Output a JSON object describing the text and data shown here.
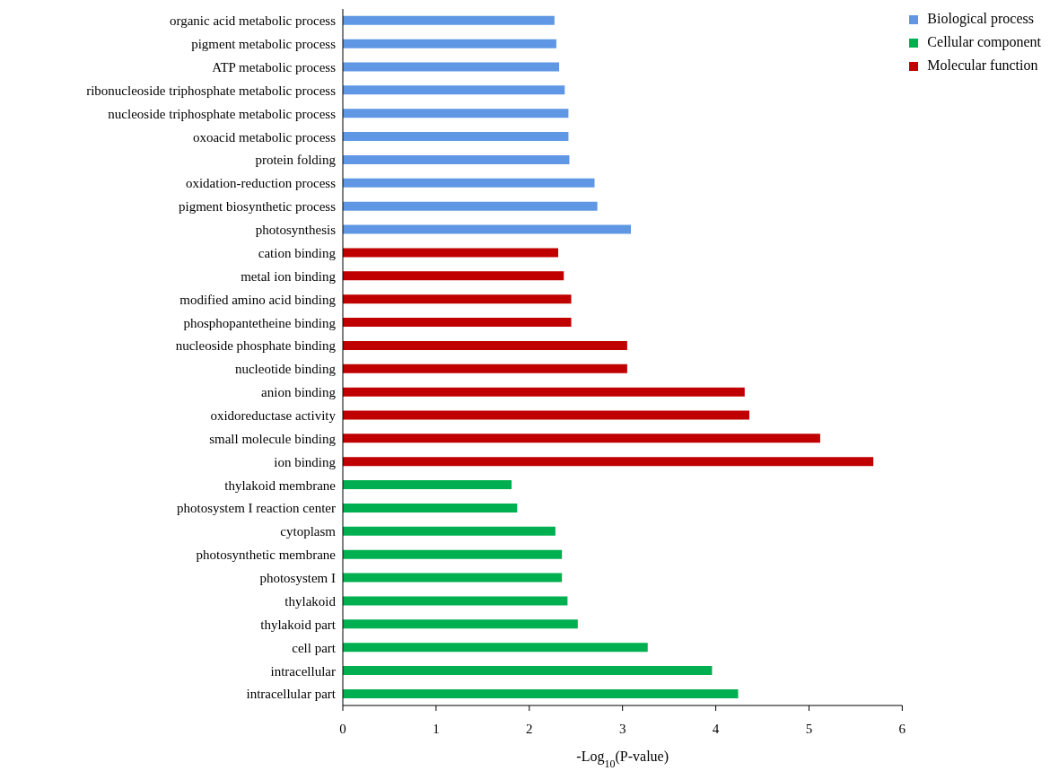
{
  "chart_data": {
    "type": "bar",
    "orientation": "horizontal",
    "stacked": true,
    "xlabel": "-Log$_{10}$(P-value)",
    "categories": [
      "organic acid metabolic process",
      "pigment metabolic process",
      "ATP metabolic process",
      "ribonucleoside triphosphate metabolic process",
      "nucleoside triphosphate metabolic process",
      "oxoacid metabolic process",
      "protein folding",
      "oxidation-reduction process",
      "pigment biosynthetic process",
      "photosynthesis",
      "cation binding",
      "metal ion binding",
      "modified amino acid binding",
      "phosphopantetheine binding",
      "nucleoside phosphate binding",
      "nucleotide binding",
      "anion binding",
      "oxidoreductase activity",
      "small molecule binding",
      "ion binding",
      "thylakoid membrane",
      "photosystem I reaction center",
      "cytoplasm",
      "photosynthetic membrane",
      "photosystem I",
      "thylakoid",
      "thylakoid part",
      "cell part",
      "intracellular",
      "intracellular part"
    ],
    "series": [
      {
        "name": "Biological process",
        "color": "#5f97e5",
        "values": [
          2.27,
          2.29,
          2.32,
          2.38,
          2.42,
          2.42,
          2.43,
          2.7,
          2.73,
          3.09,
          null,
          null,
          null,
          null,
          null,
          null,
          null,
          null,
          null,
          null,
          null,
          null,
          null,
          null,
          null,
          null,
          null,
          null,
          null,
          null
        ]
      },
      {
        "name": "Molecular function",
        "color": "#c00000",
        "values": [
          null,
          null,
          null,
          null,
          null,
          null,
          null,
          null,
          null,
          null,
          2.31,
          2.37,
          2.45,
          2.45,
          3.05,
          3.05,
          4.31,
          4.36,
          5.12,
          5.69,
          null,
          null,
          null,
          null,
          null,
          null,
          null,
          null,
          null,
          null
        ]
      },
      {
        "name": "Cellular component",
        "color": "#00b050",
        "values": [
          null,
          null,
          null,
          null,
          null,
          null,
          null,
          null,
          null,
          null,
          null,
          null,
          null,
          null,
          null,
          null,
          null,
          null,
          null,
          null,
          1.81,
          1.87,
          2.28,
          2.35,
          2.35,
          2.41,
          2.52,
          3.27,
          3.96,
          4.24
        ]
      }
    ],
    "xlim": [
      0,
      6
    ],
    "xticks": [
      0,
      1,
      2,
      3,
      4,
      5,
      6
    ],
    "legend": "top right"
  }
}
